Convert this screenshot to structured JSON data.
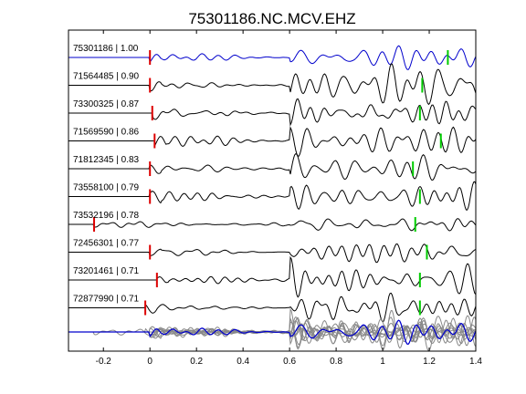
{
  "chart_data": {
    "type": "line",
    "title": "75301186.NC.MCV.EHZ",
    "xlabel": "",
    "ylabel": "",
    "xlim": [
      -0.35,
      1.4
    ],
    "xticks": [
      "-0.2",
      "0",
      "0.2",
      "0.4",
      "0.6",
      "0.8",
      "1",
      "1.2",
      "1.4"
    ],
    "xtick_values": [
      -0.2,
      0,
      0.2,
      0.4,
      0.6,
      0.8,
      1.0,
      1.2,
      1.4
    ],
    "grid": false,
    "legend": "none",
    "colors": {
      "reference": "#0000cc",
      "trace": "#000000",
      "p_pick": "#dd0000",
      "s_pick": "#00cc00",
      "stack": "#888888",
      "axes": "#000000"
    },
    "traces": [
      {
        "label": "75301186 | 1.00",
        "p_pick": 0.0,
        "s_pick": 1.28,
        "reference": true,
        "quiet_start": 0.0
      },
      {
        "label": "71564485 | 0.90",
        "p_pick": 0.0,
        "s_pick": 1.17,
        "reference": false,
        "quiet_start": 0.0
      },
      {
        "label": "73300325 | 0.87",
        "p_pick": 0.01,
        "s_pick": 1.16,
        "reference": false,
        "quiet_start": 0.01
      },
      {
        "label": "71569590 | 0.86",
        "p_pick": 0.02,
        "s_pick": 1.25,
        "reference": false,
        "quiet_start": 0.02
      },
      {
        "label": "71812345 | 0.83",
        "p_pick": 0.0,
        "s_pick": 1.13,
        "reference": false,
        "quiet_start": 0.0
      },
      {
        "label": "73558100 | 0.79",
        "p_pick": 0.0,
        "s_pick": 1.16,
        "reference": false,
        "quiet_start": 0.0
      },
      {
        "label": "73532196 | 0.78",
        "p_pick": -0.24,
        "s_pick": 1.14,
        "reference": false,
        "quiet_start": -0.24
      },
      {
        "label": "72456301 | 0.77",
        "p_pick": 0.0,
        "s_pick": 1.19,
        "reference": false,
        "quiet_start": 0.0
      },
      {
        "label": "73201461 | 0.71",
        "p_pick": 0.03,
        "s_pick": 1.16,
        "reference": false,
        "quiet_start": 0.03
      },
      {
        "label": "72877990 | 0.71",
        "p_pick": -0.02,
        "s_pick": 1.16,
        "reference": false,
        "quiet_start": -0.02
      }
    ]
  }
}
